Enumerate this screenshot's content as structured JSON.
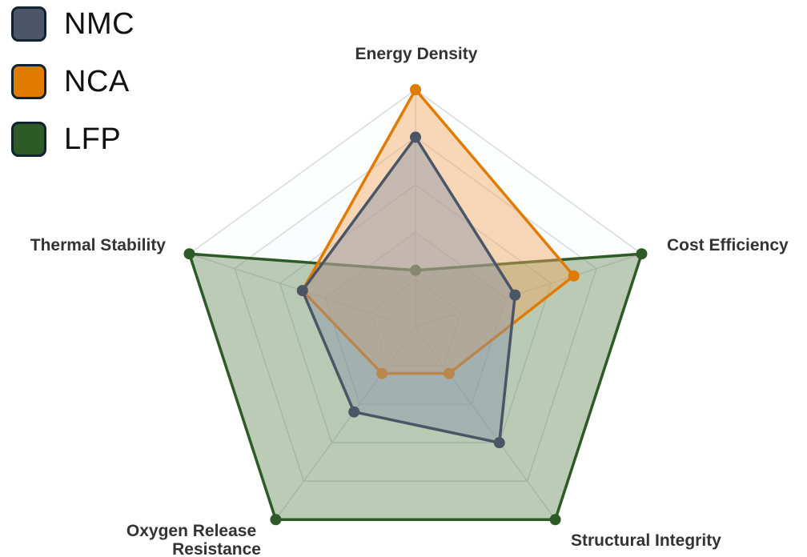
{
  "chart_data": {
    "type": "radar",
    "axes": [
      "Energy Density",
      "Cost Efficiency",
      "Structural Integrity",
      "Oxygen Release Resistance",
      "Thermal Stability"
    ],
    "series": [
      {
        "name": "LFP",
        "values": [
          1.2,
          5,
          5,
          5,
          5
        ],
        "color": "#2d5a27",
        "fill": "#6b8f5e"
      },
      {
        "name": "NCA",
        "values": [
          5,
          3.5,
          1.2,
          1.2,
          2.5
        ],
        "color": "#e07b00",
        "fill": "#f0a860"
      },
      {
        "name": "NMC",
        "values": [
          4,
          2.2,
          3,
          2.2,
          2.5
        ],
        "color": "#4a5566",
        "fill": "#8a94a8"
      }
    ],
    "range": [
      0,
      5
    ],
    "levels": 5,
    "grid": true,
    "legend_position": "top-left"
  },
  "legend": [
    {
      "label": "NMC",
      "color": "#4c5668"
    },
    {
      "label": "NCA",
      "color": "#e07b00"
    },
    {
      "label": "LFP",
      "color": "#2d5a27"
    }
  ]
}
